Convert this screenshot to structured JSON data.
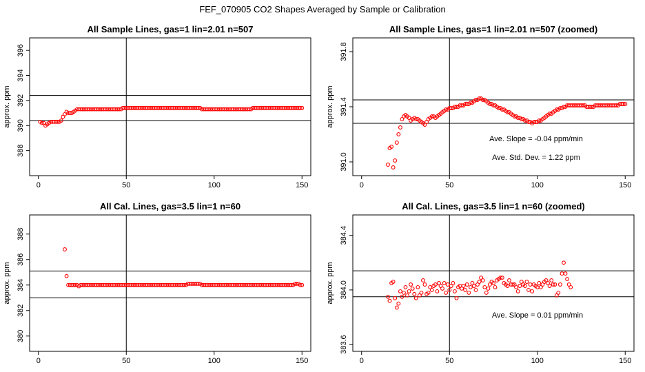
{
  "figure": {
    "title": "FEF_070905  CO2 Shapes Averaged by Sample or Calibration"
  },
  "colors": {
    "points": "#ff0000",
    "axes": "#000000"
  },
  "chart_data": [
    {
      "type": "scatter",
      "title": "All Sample Lines, gas=1 lin=2.01 n=507",
      "xlabel": "",
      "ylabel": "approx. ppm",
      "xlim": [
        -5,
        155
      ],
      "ylim": [
        386.0,
        397.0
      ],
      "xticks": [
        0,
        50,
        100,
        150
      ],
      "yticks": [
        388,
        390,
        392,
        394,
        396
      ],
      "hlines": [
        392.4,
        390.4
      ],
      "vlines": [
        50
      ],
      "x_start": 1,
      "y": [
        390.3,
        390.2,
        390.2,
        390.0,
        390.1,
        390.2,
        390.3,
        390.3,
        390.3,
        390.3,
        390.3,
        390.3,
        390.4,
        390.7,
        390.9,
        391.1,
        391.0,
        391.0,
        391.0,
        391.1,
        391.2,
        391.3,
        391.3,
        391.3,
        391.3,
        391.3,
        391.3,
        391.3,
        391.3,
        391.3,
        391.3,
        391.3,
        391.3,
        391.3,
        391.3,
        391.3,
        391.3,
        391.3,
        391.3,
        391.3,
        391.3,
        391.3,
        391.3,
        391.3,
        391.3,
        391.3,
        391.3,
        391.4,
        391.4,
        391.4,
        391.4,
        391.4,
        391.4,
        391.4,
        391.4,
        391.4,
        391.4,
        391.4,
        391.4,
        391.4,
        391.4,
        391.4,
        391.4,
        391.4,
        391.4,
        391.4,
        391.4,
        391.4,
        391.4,
        391.4,
        391.4,
        391.4,
        391.4,
        391.4,
        391.4,
        391.4,
        391.4,
        391.4,
        391.4,
        391.4,
        391.4,
        391.4,
        391.4,
        391.4,
        391.4,
        391.4,
        391.4,
        391.4,
        391.4,
        391.4,
        391.4,
        391.4,
        391.3,
        391.3,
        391.3,
        391.3,
        391.3,
        391.3,
        391.3,
        391.3,
        391.3,
        391.3,
        391.3,
        391.3,
        391.3,
        391.3,
        391.3,
        391.3,
        391.3,
        391.3,
        391.3,
        391.3,
        391.3,
        391.3,
        391.3,
        391.3,
        391.3,
        391.3,
        391.3,
        391.3,
        391.3,
        391.4,
        391.4,
        391.4,
        391.4,
        391.4,
        391.4,
        391.4,
        391.4,
        391.4,
        391.4,
        391.4,
        391.4,
        391.4,
        391.4,
        391.4,
        391.4,
        391.4,
        391.4,
        391.4,
        391.4,
        391.4,
        391.4,
        391.4,
        391.4,
        391.4,
        391.4,
        391.4,
        391.4,
        391.4
      ],
      "annotations": []
    },
    {
      "type": "scatter",
      "title": "All Sample Lines, gas=1 lin=2.01 n=507 (zoomed)",
      "xlabel": "",
      "ylabel": "approx. ppm",
      "xlim": [
        -5,
        155
      ],
      "ylim": [
        390.9,
        391.9
      ],
      "xticks": [
        0,
        50,
        100,
        150
      ],
      "yticks": [
        391.0,
        391.4,
        391.8
      ],
      "ytick_labels": [
        "391.0",
        "391.4",
        "391.8"
      ],
      "hlines": [
        391.45,
        391.28
      ],
      "vlines": [
        50
      ],
      "x_start": 15,
      "y": [
        390.98,
        391.1,
        391.11,
        390.96,
        391.01,
        391.14,
        391.2,
        391.25,
        391.31,
        391.33,
        391.34,
        391.33,
        391.32,
        391.3,
        391.31,
        391.32,
        391.31,
        391.31,
        391.3,
        391.29,
        391.28,
        391.27,
        391.29,
        391.31,
        391.32,
        391.33,
        391.33,
        391.32,
        391.33,
        391.34,
        391.35,
        391.36,
        391.37,
        391.38,
        391.38,
        391.39,
        391.39,
        391.39,
        391.4,
        391.4,
        391.4,
        391.41,
        391.41,
        391.41,
        391.42,
        391.42,
        391.42,
        391.43,
        391.43,
        391.44,
        391.45,
        391.45,
        391.46,
        391.46,
        391.45,
        391.45,
        391.44,
        391.43,
        391.42,
        391.42,
        391.41,
        391.41,
        391.4,
        391.39,
        391.39,
        391.38,
        391.38,
        391.37,
        391.36,
        391.36,
        391.35,
        391.34,
        391.33,
        391.33,
        391.32,
        391.32,
        391.31,
        391.31,
        391.3,
        391.3,
        391.29,
        391.29,
        391.28,
        391.29,
        391.29,
        391.29,
        391.3,
        391.3,
        391.31,
        391.32,
        391.33,
        391.34,
        391.35,
        391.35,
        391.36,
        391.37,
        391.38,
        391.38,
        391.39,
        391.39,
        391.4,
        391.4,
        391.41,
        391.41,
        391.41,
        391.41,
        391.41,
        391.41,
        391.41,
        391.41,
        391.41,
        391.41,
        391.41,
        391.4,
        391.4,
        391.4,
        391.4,
        391.4,
        391.41,
        391.41,
        391.41,
        391.41,
        391.41,
        391.41,
        391.41,
        391.41,
        391.41,
        391.41,
        391.41,
        391.41,
        391.41,
        391.41,
        391.42,
        391.42,
        391.42,
        391.42
      ],
      "annotations": [
        "Ave. Slope =  -0.04  ppm/min",
        "Ave. Std. Dev. =  1.22  ppm"
      ]
    },
    {
      "type": "scatter",
      "title": "All Cal. Lines, gas=3.5 lin=1 n=60",
      "xlabel": "",
      "ylabel": "approx. ppm",
      "xlim": [
        -5,
        155
      ],
      "ylim": [
        378.8,
        389.5
      ],
      "xticks": [
        0,
        50,
        100,
        150
      ],
      "yticks": [
        380,
        382,
        384,
        386,
        388
      ],
      "hlines": [
        385.1,
        383.0
      ],
      "vlines": [
        50
      ],
      "x_start": 15,
      "y": [
        386.8,
        384.7,
        384.0,
        384.0,
        384.0,
        384.0,
        384.0,
        384.0,
        383.9,
        384.0,
        384.0,
        384.0,
        384.0,
        384.0,
        384.0,
        384.0,
        384.0,
        384.0,
        384.0,
        384.0,
        384.0,
        384.0,
        384.0,
        384.0,
        384.0,
        384.0,
        384.0,
        384.0,
        384.0,
        384.0,
        384.0,
        384.0,
        384.0,
        384.0,
        384.0,
        384.0,
        384.0,
        384.0,
        384.0,
        384.0,
        384.0,
        384.0,
        384.0,
        384.0,
        384.0,
        384.0,
        384.0,
        384.0,
        384.0,
        384.0,
        384.0,
        384.0,
        384.0,
        384.0,
        384.0,
        384.0,
        384.0,
        384.0,
        384.0,
        384.0,
        384.0,
        384.0,
        384.0,
        384.0,
        384.0,
        384.0,
        384.0,
        384.0,
        384.0,
        384.0,
        384.1,
        384.1,
        384.1,
        384.1,
        384.1,
        384.1,
        384.1,
        384.1,
        384.0,
        384.0,
        384.0,
        384.0,
        384.0,
        384.0,
        384.0,
        384.0,
        384.0,
        384.0,
        384.0,
        384.0,
        384.0,
        384.0,
        384.0,
        384.0,
        384.0,
        384.0,
        384.0,
        384.0,
        384.0,
        384.0,
        384.0,
        384.0,
        384.0,
        384.0,
        384.0,
        384.0,
        384.0,
        384.0,
        384.0,
        384.0,
        384.0,
        384.0,
        384.0,
        384.0,
        384.0,
        384.0,
        384.0,
        384.0,
        384.0,
        384.0,
        384.0,
        384.0,
        384.0,
        384.0,
        384.0,
        384.0,
        384.0,
        384.0,
        384.0,
        384.0,
        384.0,
        384.1,
        384.1,
        384.1,
        384.0,
        384.0
      ],
      "annotations": []
    },
    {
      "type": "scatter",
      "title": "All Cal. Lines, gas=3.5 lin=1 n=60 (zoomed)",
      "xlabel": "",
      "ylabel": "approx. ppm",
      "xlim": [
        -5,
        155
      ],
      "ylim": [
        383.55,
        384.55
      ],
      "xticks": [
        0,
        50,
        100,
        150
      ],
      "yticks": [
        383.6,
        384.0,
        384.4
      ],
      "ytick_labels": [
        "383.6",
        "384.0",
        "384.4"
      ],
      "hlines": [
        384.14,
        383.95
      ],
      "vlines": [
        50
      ],
      "x_start": 15,
      "y": [
        383.95,
        383.92,
        384.05,
        384.06,
        383.94,
        383.87,
        383.9,
        383.99,
        383.95,
        383.98,
        384.02,
        383.96,
        383.99,
        384.04,
        384.01,
        383.97,
        383.94,
        384.02,
        383.96,
        383.98,
        384.07,
        384.04,
        383.97,
        383.98,
        384.02,
        384.0,
        384.03,
        384.04,
        383.99,
        384.05,
        384.03,
        384.01,
        384.05,
        383.98,
        384.04,
        384.0,
        384.03,
        384.05,
        383.99,
        383.94,
        384.02,
        384.03,
        384.01,
        384.03,
        384.0,
        384.04,
        383.98,
        384.02,
        384.05,
        384.03,
        384.0,
        384.04,
        384.06,
        384.09,
        384.07,
        384.02,
        383.98,
        384.01,
        384.04,
        384.06,
        384.05,
        384.02,
        384.07,
        384.08,
        384.09,
        384.09,
        384.05,
        384.04,
        384.03,
        384.07,
        384.04,
        384.04,
        384.04,
        384.02,
        383.99,
        384.03,
        384.06,
        384.04,
        384.03,
        384.06,
        384.0,
        384.04,
        383.99,
        384.04,
        384.03,
        384.02,
        384.05,
        384.02,
        384.04,
        384.06,
        384.07,
        384.05,
        384.03,
        384.07,
        384.04,
        384.04,
        383.96,
        383.98,
        384.04,
        384.12,
        384.2,
        384.12,
        384.08,
        384.04,
        384.02
      ],
      "annotations": [
        "Ave. Slope =  0.01  ppm/min"
      ]
    }
  ]
}
